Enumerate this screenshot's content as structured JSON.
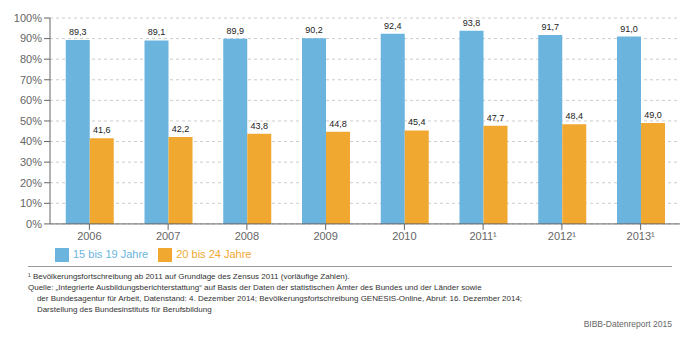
{
  "chart_data": {
    "type": "bar",
    "categories": [
      "2006",
      "2007",
      "2008",
      "2009",
      "2010",
      "2011¹",
      "2012¹",
      "2013¹"
    ],
    "series": [
      {
        "name": "15 bis 19 Jahre",
        "color": "#6ab4de",
        "values": [
          89.3,
          89.1,
          89.9,
          90.2,
          92.4,
          93.8,
          91.7,
          91.0
        ],
        "value_labels": [
          "89,3",
          "89,1",
          "89,9",
          "90,2",
          "92,4",
          "93,8",
          "91,7",
          "91,0"
        ]
      },
      {
        "name": "20 bis 24 Jahre",
        "color": "#f0a830",
        "values": [
          41.6,
          42.2,
          43.8,
          44.8,
          45.4,
          47.7,
          48.4,
          49.0
        ],
        "value_labels": [
          "41,6",
          "42,2",
          "43,8",
          "44,8",
          "45,4",
          "47,7",
          "48,4",
          "49,0"
        ]
      }
    ],
    "ylim": [
      0,
      100
    ],
    "yticks": [
      {
        "value": 0,
        "label": "0%"
      },
      {
        "value": 10,
        "label": "10%"
      },
      {
        "value": 20,
        "label": "20%"
      },
      {
        "value": 30,
        "label": "30%"
      },
      {
        "value": 40,
        "label": "40%"
      },
      {
        "value": 50,
        "label": "50%"
      },
      {
        "value": 60,
        "label": "60%"
      },
      {
        "value": 70,
        "label": "70%"
      },
      {
        "value": 80,
        "label": "80%"
      },
      {
        "value": 90,
        "label": "90%"
      },
      {
        "value": 100,
        "label": "100%"
      }
    ],
    "grid": true,
    "legend": "bottom",
    "data_labels": true,
    "footnotes": [
      "¹ Bevölkerungsfortschreibung ab 2011 auf Grundlage des Zensus 2011 (vorläufige Zahlen).",
      "Quelle: „Integrierte Ausbildungsberichterstattung“ auf Basis der Daten der statistischen Ämter des Bundes und der Länder sowie",
      "    der Bundesagentur für Arbeit, Datenstand: 4. Dezember 2014; Bevölkerungsfortschreibung GENESIS-Online, Abruf: 16. Dezember 2014;",
      "    Darstellung des Bundesinstituts für Berufsbildung"
    ],
    "branding": "BIBB-Datenreport 2015"
  }
}
